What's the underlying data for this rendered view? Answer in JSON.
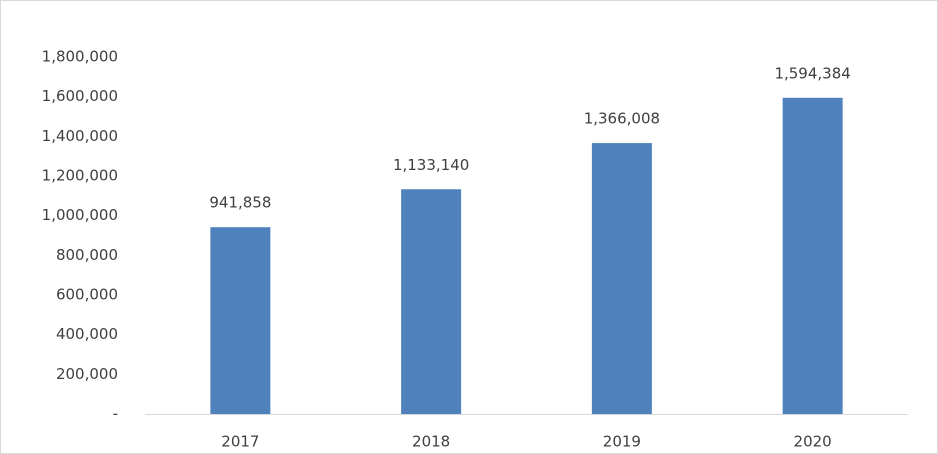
{
  "chart_data": {
    "type": "bar",
    "categories": [
      "2017",
      "2018",
      "2019",
      "2020"
    ],
    "values": [
      941858,
      1133140,
      1366008,
      1594384
    ],
    "value_labels": [
      "941,858",
      "1,133,140",
      "1,366,008",
      "1,594,384"
    ],
    "color": "#4f81bd",
    "ylim": [
      0,
      1800000
    ],
    "yticks": [
      {
        "value": 0,
        "label": "-"
      },
      {
        "value": 200000,
        "label": "200,000"
      },
      {
        "value": 400000,
        "label": "400,000"
      },
      {
        "value": 600000,
        "label": "600,000"
      },
      {
        "value": 800000,
        "label": "800,000"
      },
      {
        "value": 1000000,
        "label": "1,000,000"
      },
      {
        "value": 1200000,
        "label": "1,200,000"
      },
      {
        "value": 1400000,
        "label": "1,400,000"
      },
      {
        "value": 1600000,
        "label": "1,600,000"
      },
      {
        "value": 1800000,
        "label": "1,800,000"
      }
    ],
    "grid": false
  }
}
